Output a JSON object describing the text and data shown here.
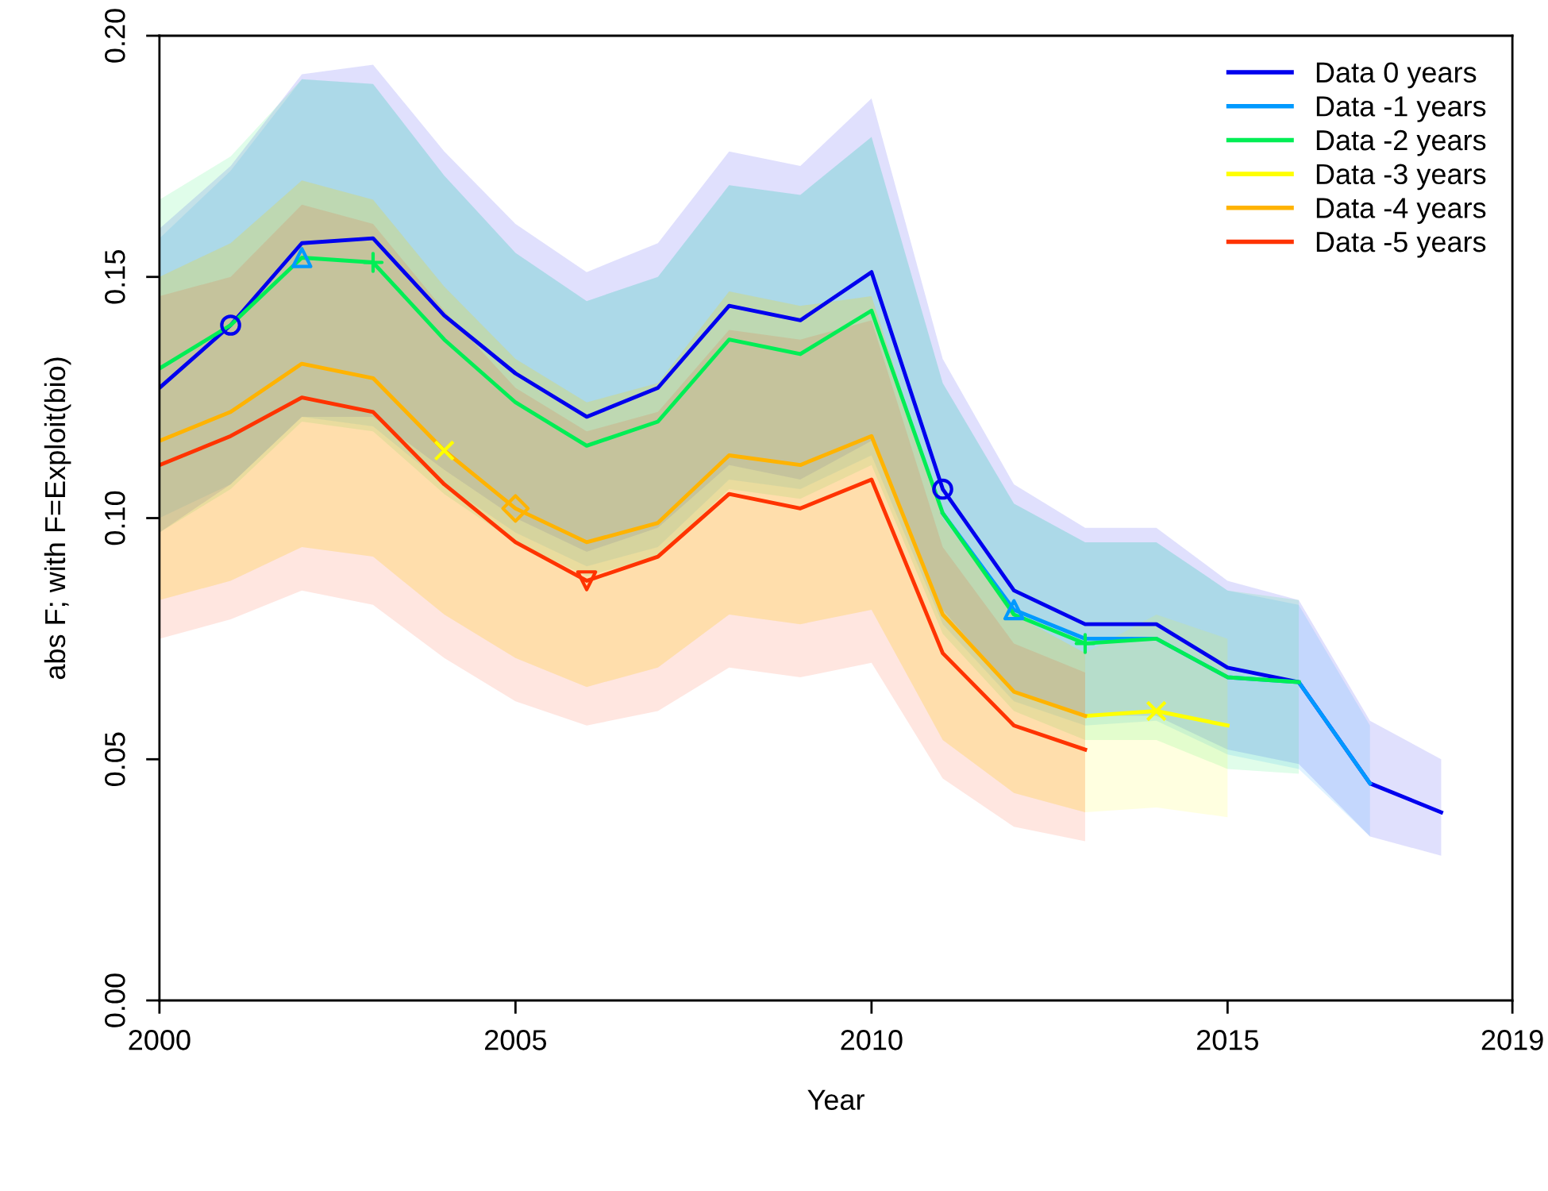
{
  "chart_data": {
    "type": "line",
    "xlabel": "Year",
    "ylabel": "abs F; with F=Exploit(bio)",
    "xlim": [
      2000,
      2019
    ],
    "ylim": [
      0,
      0.2
    ],
    "xticks": [
      2000,
      2005,
      2010,
      2015,
      2019
    ],
    "yticks": [
      {
        "value": 0,
        "label": "0.00"
      },
      0.05,
      {
        "value": 0.1,
        "label": "0.10"
      },
      0.15,
      {
        "value": 0.2,
        "label": "0.20"
      }
    ],
    "grid": false,
    "legend": "top right",
    "line_style": "solid",
    "series": [
      {
        "name": "Data 0 years",
        "color": "#0000ee",
        "x": [
          2000,
          2001,
          2002,
          2003,
          2004,
          2005,
          2006,
          2007,
          2008,
          2009,
          2010,
          2011,
          2012,
          2013,
          2014,
          2015,
          2016,
          2017,
          2018
        ],
        "values": [
          0.127,
          0.14,
          0.157,
          0.158,
          0.142,
          0.13,
          0.121,
          0.127,
          0.144,
          0.141,
          0.151,
          0.106,
          0.085,
          0.078,
          0.078,
          0.069,
          0.066,
          0.045,
          0.039
        ],
        "upper": [
          0.16,
          0.173,
          0.192,
          0.194,
          0.176,
          0.161,
          0.151,
          0.157,
          0.176,
          0.173,
          0.187,
          0.133,
          0.107,
          0.098,
          0.098,
          0.087,
          0.083,
          0.058,
          0.05
        ],
        "lower": [
          0.097,
          0.107,
          0.121,
          0.121,
          0.11,
          0.1,
          0.093,
          0.098,
          0.111,
          0.108,
          0.116,
          0.081,
          0.064,
          0.059,
          0.059,
          0.052,
          0.049,
          0.034,
          0.03
        ]
      },
      {
        "name": "Data -1 years",
        "color": "#0099ff",
        "x": [
          2000,
          2001,
          2002,
          2003,
          2004,
          2005,
          2006,
          2007,
          2008,
          2009,
          2010,
          2011,
          2012,
          2013,
          2014,
          2015,
          2016,
          2017
        ],
        "values": [
          null,
          null,
          null,
          null,
          null,
          null,
          null,
          null,
          null,
          null,
          null,
          0.101,
          0.081,
          0.075,
          0.075,
          0.067,
          0.066,
          0.045
        ],
        "upper": [
          0.158,
          0.172,
          0.191,
          0.19,
          0.171,
          0.155,
          0.145,
          0.15,
          0.169,
          0.167,
          0.179,
          0.128,
          0.103,
          0.095,
          0.095,
          0.085,
          0.082,
          0.057
        ],
        "lower": [
          0.1,
          0.107,
          0.121,
          0.119,
          0.107,
          0.097,
          0.09,
          0.094,
          0.108,
          0.106,
          0.113,
          0.078,
          0.062,
          0.057,
          0.058,
          0.051,
          0.048,
          0.034
        ]
      },
      {
        "name": "Data -2 years",
        "color": "#00ee55",
        "x": [
          2000,
          2001,
          2002,
          2003,
          2004,
          2005,
          2006,
          2007,
          2008,
          2009,
          2010,
          2011,
          2012,
          2013,
          2014,
          2015,
          2016
        ],
        "values": [
          0.131,
          0.14,
          0.154,
          0.153,
          0.137,
          0.124,
          0.115,
          0.12,
          0.137,
          0.134,
          0.143,
          0.101,
          0.08,
          0.074,
          0.075,
          0.067,
          0.066
        ],
        "upper": [
          0.166,
          0.175,
          0.191,
          0.19,
          0.171,
          0.155,
          0.145,
          0.15,
          0.169,
          0.167,
          0.179,
          0.128,
          0.103,
          0.095,
          0.095,
          0.085,
          0.083
        ],
        "lower": [
          0.097,
          0.106,
          0.12,
          0.118,
          0.105,
          0.095,
          0.088,
          0.092,
          0.106,
          0.104,
          0.111,
          0.076,
          0.06,
          0.054,
          0.054,
          0.048,
          0.047
        ]
      },
      {
        "name": "Data -3 years",
        "color": "#ffff00",
        "x": [
          2000,
          2001,
          2002,
          2003,
          2004,
          2005,
          2006,
          2007,
          2008,
          2009,
          2010,
          2011,
          2012,
          2013,
          2014,
          2015
        ],
        "values": [
          null,
          null,
          null,
          null,
          null,
          null,
          null,
          null,
          null,
          null,
          null,
          null,
          null,
          0.059,
          0.06,
          0.057
        ],
        "upper": [
          0.15,
          0.157,
          0.17,
          0.166,
          0.148,
          0.133,
          0.124,
          0.128,
          0.147,
          0.144,
          0.146,
          0.1,
          0.08,
          0.072,
          0.08,
          0.075
        ],
        "lower": [
          0.083,
          0.087,
          0.094,
          0.092,
          0.08,
          0.071,
          0.065,
          0.069,
          0.08,
          0.078,
          0.081,
          0.054,
          0.043,
          0.039,
          0.04,
          0.038
        ]
      },
      {
        "name": "Data -4 years",
        "color": "#ffb300",
        "x": [
          2000,
          2001,
          2002,
          2003,
          2004,
          2005,
          2006,
          2007,
          2008,
          2009,
          2010,
          2011,
          2012,
          2013
        ],
        "values": [
          0.116,
          0.122,
          0.132,
          0.129,
          0.114,
          0.102,
          0.095,
          0.099,
          0.113,
          0.111,
          0.117,
          0.08,
          0.064,
          0.059
        ],
        "upper": [
          0.15,
          0.157,
          0.17,
          0.166,
          0.148,
          0.133,
          0.124,
          0.128,
          0.147,
          0.144,
          0.146,
          0.1,
          0.08,
          0.072
        ],
        "lower": [
          0.083,
          0.087,
          0.094,
          0.092,
          0.08,
          0.071,
          0.065,
          0.069,
          0.08,
          0.078,
          0.081,
          0.054,
          0.043,
          0.039
        ]
      },
      {
        "name": "Data -5 years",
        "color": "#ff3300",
        "x": [
          2000,
          2001,
          2002,
          2003,
          2004,
          2005,
          2006,
          2007,
          2008,
          2009,
          2010,
          2011,
          2012,
          2013
        ],
        "values": [
          0.111,
          0.117,
          0.125,
          0.122,
          0.107,
          0.095,
          0.087,
          0.092,
          0.105,
          0.102,
          0.108,
          0.072,
          0.057,
          0.052
        ],
        "upper": [
          0.146,
          0.15,
          0.165,
          0.161,
          0.143,
          0.127,
          0.118,
          0.122,
          0.139,
          0.137,
          0.141,
          0.094,
          0.074,
          0.068
        ],
        "lower": [
          0.075,
          0.079,
          0.085,
          0.082,
          0.071,
          0.062,
          0.057,
          0.06,
          0.069,
          0.067,
          0.07,
          0.046,
          0.036,
          0.033
        ]
      },
      {
        "type": "scatter",
        "color": "#0000ee",
        "marker": "circle",
        "x": [
          2001,
          2011
        ],
        "values": [
          0.14,
          0.106
        ]
      },
      {
        "type": "scatter",
        "color": "#0099ff",
        "marker": "triangle",
        "x": [
          2002,
          2012
        ],
        "values": [
          0.154,
          0.081
        ]
      },
      {
        "type": "scatter",
        "color": "#00ee55",
        "marker": "cross",
        "x": [
          2003,
          2013
        ],
        "values": [
          0.153,
          0.074
        ]
      },
      {
        "type": "scatter",
        "color": "#ffff00",
        "marker": "x",
        "x": [
          2004,
          2014
        ],
        "values": [
          0.114,
          0.06
        ]
      },
      {
        "type": "scatter",
        "color": "#ffb300",
        "marker": "diamond",
        "x": [
          2005
        ],
        "values": [
          0.102
        ]
      },
      {
        "type": "scatter",
        "color": "#ff3300",
        "marker": "triangle_down",
        "x": [
          2006
        ],
        "values": [
          0.087
        ]
      }
    ]
  }
}
